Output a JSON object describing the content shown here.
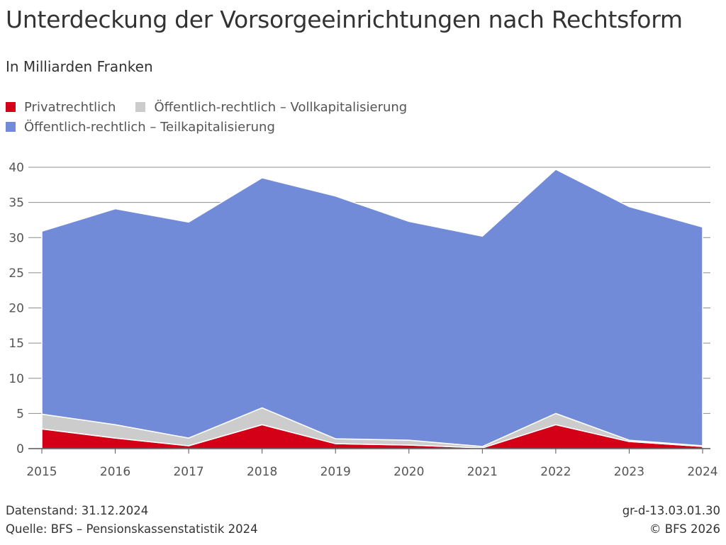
{
  "title": "Unterdeckung der Vorsorgeeinrichtungen nach Rechtsform",
  "subtitle": "In Milliarden Franken",
  "footer": {
    "datenstand": "Datenstand: 31.12.2024",
    "quelle": "Quelle: BFS – Pensionskassenstatistik 2024",
    "code": "gr-d-13.03.01.30",
    "copyright": "© BFS 2026"
  },
  "chart_data": {
    "type": "area",
    "stacked": true,
    "x": [
      2015,
      2016,
      2017,
      2018,
      2019,
      2020,
      2021,
      2022,
      2023,
      2024
    ],
    "series": [
      {
        "name": "Privatrechtlich",
        "color": "#d40018",
        "values": [
          2.8,
          1.5,
          0.4,
          3.4,
          0.7,
          0.5,
          0.1,
          3.4,
          1.0,
          0.3
        ]
      },
      {
        "name": "Öffentlich-rechtlich – Vollkapitalisierung",
        "color": "#cccccc",
        "values": [
          2.1,
          1.9,
          1.1,
          2.4,
          0.7,
          0.7,
          0.2,
          1.6,
          0.2,
          0.1
        ]
      },
      {
        "name": "Öffentlich-rechtlich – Teilkapitalisierung",
        "color": "#728bd8",
        "values": [
          26.0,
          30.7,
          30.7,
          32.7,
          34.5,
          31.1,
          29.9,
          34.7,
          33.2,
          31.1
        ]
      }
    ],
    "ylim": [
      0,
      40
    ],
    "yticks": [
      0,
      5,
      10,
      15,
      20,
      25,
      30,
      35,
      40
    ],
    "grid": true,
    "legend_position": "top-left"
  }
}
